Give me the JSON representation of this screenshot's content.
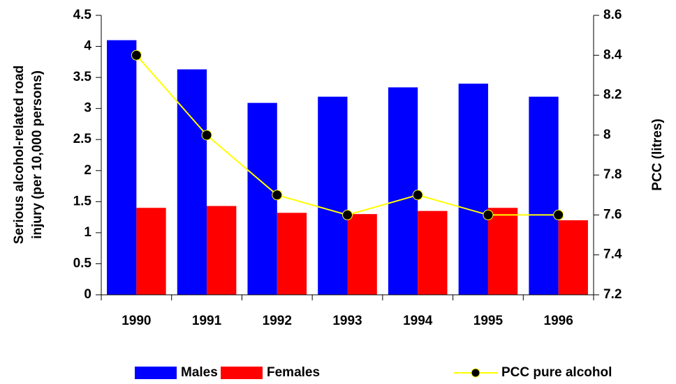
{
  "chart_data": {
    "type": "bar_line",
    "categories": [
      "1990",
      "1991",
      "1992",
      "1993",
      "1994",
      "1995",
      "1996"
    ],
    "series": [
      {
        "name": "Males",
        "color": "#0000ff",
        "type": "bar",
        "values": [
          4.1,
          3.63,
          3.09,
          3.19,
          3.34,
          3.4,
          3.19
        ]
      },
      {
        "name": "Females",
        "color": "#ff0000",
        "type": "bar",
        "values": [
          1.4,
          1.43,
          1.32,
          1.3,
          1.35,
          1.4,
          1.2
        ]
      },
      {
        "name": "PCC pure alcohol",
        "color": "#ffff00",
        "type": "line",
        "axis": "y2",
        "values": [
          8.4,
          8.0,
          7.7,
          7.6,
          7.7,
          7.6,
          7.6
        ]
      }
    ],
    "ylabel": [
      "Serious alcohol-related road",
      "injury (per 10,000 persons)"
    ],
    "y2label": "PCC (litres)",
    "ylim": [
      0,
      4.5
    ],
    "yticks": [
      0,
      0.5,
      1,
      1.5,
      2,
      2.5,
      3,
      3.5,
      4,
      4.5
    ],
    "y2lim": [
      7.2,
      8.6
    ],
    "y2ticks": [
      7.2,
      7.4,
      7.6,
      7.8,
      8,
      8.2,
      8.4,
      8.6
    ],
    "legend": "bottom"
  }
}
